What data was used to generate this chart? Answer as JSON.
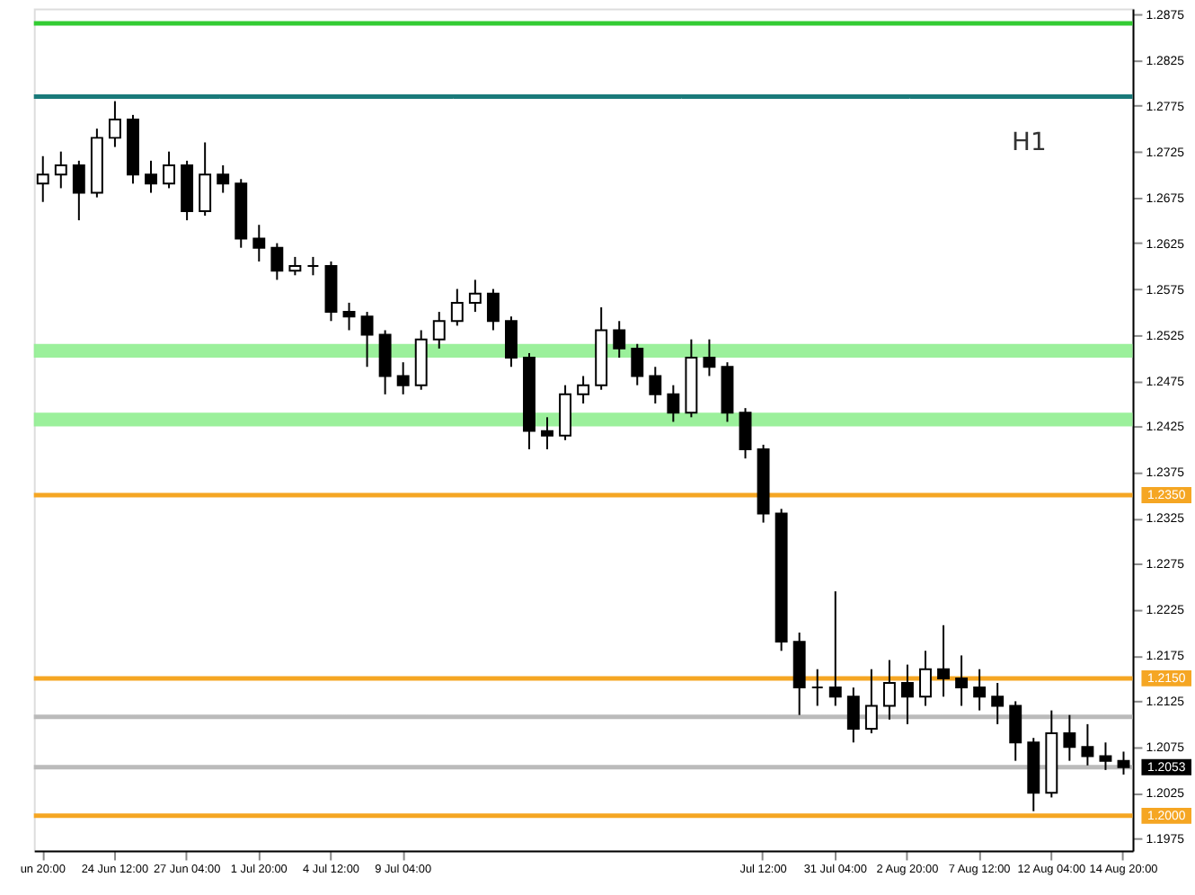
{
  "chart_data": {
    "type": "candlestick",
    "color": "#000000",
    "categories": [
      "un 20:00",
      null,
      null,
      null,
      "24 Jun 12:00",
      null,
      null,
      null,
      "27 Jun 04:00",
      null,
      null,
      null,
      "1 Jul 20:00",
      null,
      null,
      null,
      "4 Jul 12:00",
      null,
      null,
      null,
      "9 Jul 04:00",
      null,
      null,
      null,
      null,
      null,
      null,
      null,
      null,
      null,
      null,
      null,
      null,
      null,
      null,
      null,
      null,
      null,
      null,
      null,
      "Jul 12:00",
      null,
      null,
      null,
      "31 Jul 04:00",
      null,
      null,
      null,
      "2 Aug 20:00",
      null,
      null,
      null,
      "7 Aug 12:00",
      null,
      null,
      null,
      "12 Aug 04:00",
      null,
      null,
      null,
      "14 Aug 20:00"
    ],
    "ohlc": [
      [
        1.269,
        1.272,
        1.267,
        1.27
      ],
      [
        1.27,
        1.2725,
        1.2685,
        1.271
      ],
      [
        1.271,
        1.2715,
        1.265,
        1.268
      ],
      [
        1.268,
        1.275,
        1.2675,
        1.274
      ],
      [
        1.274,
        1.278,
        1.273,
        1.276
      ],
      [
        1.276,
        1.2765,
        1.269,
        1.27
      ],
      [
        1.27,
        1.2715,
        1.268,
        1.269
      ],
      [
        1.269,
        1.2725,
        1.2685,
        1.271
      ],
      [
        1.271,
        1.2715,
        1.265,
        1.266
      ],
      [
        1.266,
        1.2735,
        1.2655,
        1.27
      ],
      [
        1.27,
        1.271,
        1.268,
        1.269
      ],
      [
        1.269,
        1.2695,
        1.262,
        1.263
      ],
      [
        1.263,
        1.2645,
        1.2605,
        1.262
      ],
      [
        1.262,
        1.2625,
        1.2585,
        1.2595
      ],
      [
        1.2595,
        1.261,
        1.259,
        1.26
      ],
      [
        1.26,
        1.261,
        1.259,
        1.26
      ],
      [
        1.26,
        1.2605,
        1.254,
        1.255
      ],
      [
        1.255,
        1.256,
        1.253,
        1.2545
      ],
      [
        1.2545,
        1.255,
        1.249,
        1.2525
      ],
      [
        1.2525,
        1.253,
        1.246,
        1.248
      ],
      [
        1.248,
        1.2495,
        1.246,
        1.247
      ],
      [
        1.247,
        1.253,
        1.2465,
        1.252
      ],
      [
        1.252,
        1.255,
        1.251,
        1.254
      ],
      [
        1.254,
        1.2575,
        1.2535,
        1.256
      ],
      [
        1.256,
        1.2585,
        1.255,
        1.257
      ],
      [
        1.257,
        1.2575,
        1.253,
        1.254
      ],
      [
        1.254,
        1.2545,
        1.249,
        1.25
      ],
      [
        1.25,
        1.2505,
        1.24,
        1.242
      ],
      [
        1.242,
        1.2435,
        1.24,
        1.2415
      ],
      [
        1.2415,
        1.247,
        1.241,
        1.246
      ],
      [
        1.246,
        1.248,
        1.245,
        1.247
      ],
      [
        1.247,
        1.2555,
        1.2465,
        1.253
      ],
      [
        1.253,
        1.254,
        1.25,
        1.251
      ],
      [
        1.251,
        1.2515,
        1.247,
        1.248
      ],
      [
        1.248,
        1.249,
        1.245,
        1.246
      ],
      [
        1.246,
        1.247,
        1.243,
        1.244
      ],
      [
        1.244,
        1.252,
        1.2435,
        1.25
      ],
      [
        1.25,
        1.252,
        1.248,
        1.249
      ],
      [
        1.249,
        1.2495,
        1.243,
        1.244
      ],
      [
        1.244,
        1.2445,
        1.239,
        1.24
      ],
      [
        1.24,
        1.2405,
        1.232,
        1.233
      ],
      [
        1.233,
        1.2335,
        1.218,
        1.219
      ],
      [
        1.219,
        1.22,
        1.211,
        1.214
      ],
      [
        1.214,
        1.216,
        1.212,
        1.214
      ],
      [
        1.214,
        1.2245,
        1.212,
        1.213
      ],
      [
        1.213,
        1.214,
        1.208,
        1.2095
      ],
      [
        1.2095,
        1.216,
        1.209,
        1.212
      ],
      [
        1.212,
        1.217,
        1.2105,
        1.2145
      ],
      [
        1.2145,
        1.2165,
        1.21,
        1.213
      ],
      [
        1.213,
        1.218,
        1.212,
        1.216
      ],
      [
        1.216,
        1.2208,
        1.213,
        1.215
      ],
      [
        1.215,
        1.2175,
        1.212,
        1.214
      ],
      [
        1.214,
        1.216,
        1.2115,
        1.213
      ],
      [
        1.213,
        1.2145,
        1.21,
        1.212
      ],
      [
        1.212,
        1.2125,
        1.206,
        1.208
      ],
      [
        1.208,
        1.2085,
        1.2005,
        1.2025
      ],
      [
        1.2025,
        1.2115,
        1.202,
        1.209
      ],
      [
        1.209,
        1.211,
        1.206,
        1.2075
      ],
      [
        1.2075,
        1.21,
        1.2055,
        1.2065
      ],
      [
        1.2065,
        1.208,
        1.205,
        1.206
      ],
      [
        1.206,
        1.207,
        1.2045,
        1.2053
      ]
    ],
    "ylim": [
      1.1962,
      1.2881
    ],
    "yticks": [
      1.1975,
      1.2025,
      1.2075,
      1.2125,
      1.2175,
      1.2225,
      1.2275,
      1.2325,
      1.2375,
      1.2425,
      1.2475,
      1.2525,
      1.2575,
      1.2625,
      1.2675,
      1.2725,
      1.2775,
      1.2825,
      1.2875
    ],
    "ref_lines": [
      {
        "axis": "y",
        "value": 1.2865,
        "color": "#33cc33"
      },
      {
        "axis": "y",
        "value": 1.2785,
        "color": "#1a7a7a"
      },
      {
        "axis": "y",
        "value": 1.235,
        "label": "1.2350",
        "color": "#f5a623"
      },
      {
        "axis": "y",
        "value": 1.215,
        "label": "1.2150",
        "color": "#f5a623"
      },
      {
        "axis": "y",
        "value": 1.2108,
        "color": "#bbbbbb"
      },
      {
        "axis": "y",
        "value": 1.2053,
        "label": "1.2053",
        "color": "#bbbbbb"
      },
      {
        "axis": "y",
        "value": 1.2,
        "label": "1.2000",
        "color": "#f5a623"
      }
    ],
    "bands": [
      {
        "axis": "y",
        "from": 1.25,
        "to": 1.2515,
        "color": "#90ee90"
      },
      {
        "axis": "y",
        "from": 1.2425,
        "to": 1.244,
        "color": "#90ee90"
      }
    ],
    "annotations": [
      "H1"
    ],
    "grid": false
  }
}
